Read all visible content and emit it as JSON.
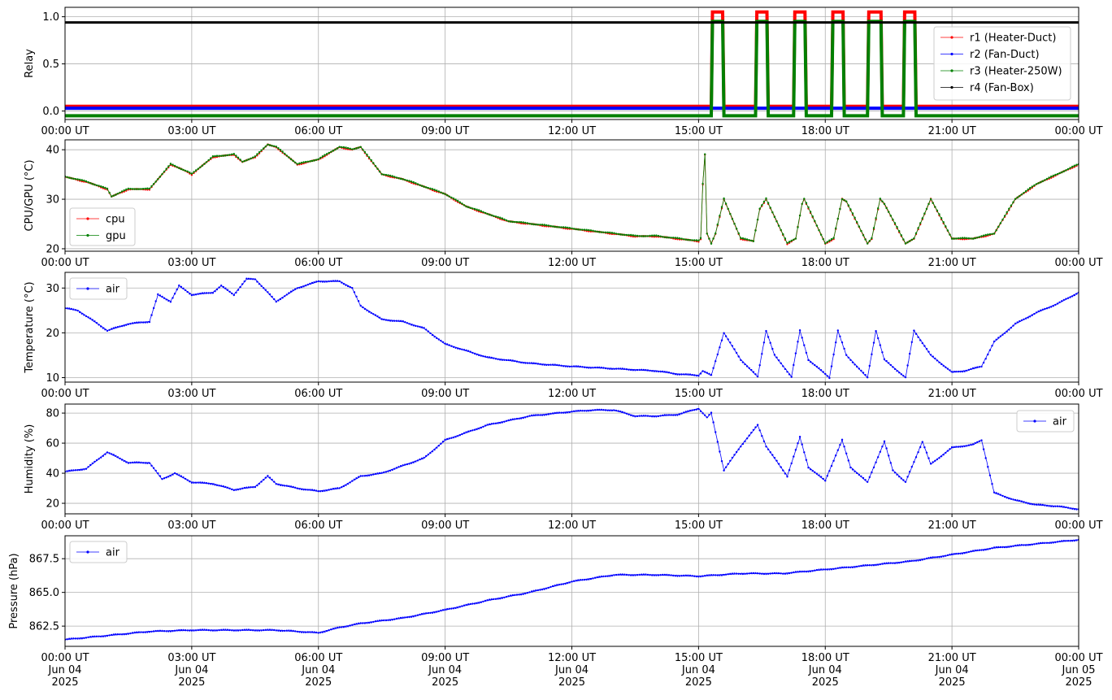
{
  "chart_data": [
    {
      "id": "relay",
      "type": "line",
      "ylabel": "Relay",
      "ylim": [
        -0.09,
        1.1
      ],
      "yticks": [
        0.0,
        0.5,
        1.0
      ],
      "ytick_labels": [
        "0.0",
        "0.5",
        "1.0"
      ],
      "grid": true,
      "legend_position": "center-right",
      "x_range_hours": [
        0,
        24
      ],
      "xtick_labels": [
        "00:00 UT",
        "03:00 UT",
        "06:00 UT",
        "09:00 UT",
        "12:00 UT",
        "15:00 UT",
        "18:00 UT",
        "21:00 UT",
        "00:00 UT"
      ],
      "series": [
        {
          "name": "r1 (Heater-Duct)",
          "color": "#ff0000",
          "off": 0.05,
          "on": 1.05,
          "on_intervals": [
            [
              15.3,
              15.6
            ],
            [
              16.35,
              16.65
            ],
            [
              17.25,
              17.55
            ],
            [
              18.15,
              18.45
            ],
            [
              19.0,
              19.35
            ],
            [
              19.85,
              20.15
            ]
          ]
        },
        {
          "name": "r2 (Fan-Duct)",
          "color": "#0000ff",
          "off": 0.03,
          "on": 0.03,
          "on_intervals": []
        },
        {
          "name": "r3 (Heater-250W)",
          "color": "#008000",
          "off": -0.05,
          "on": 0.95,
          "on_intervals": [
            [
              15.3,
              15.6
            ],
            [
              16.35,
              16.65
            ],
            [
              17.25,
              17.55
            ],
            [
              18.15,
              18.45
            ],
            [
              19.0,
              19.35
            ],
            [
              19.85,
              20.15
            ]
          ]
        },
        {
          "name": "r4 (Fan-Box)",
          "color": "#000000",
          "off": 0.94,
          "on": 0.94,
          "on_intervals": []
        }
      ]
    },
    {
      "id": "cpugpu",
      "type": "line",
      "ylabel": "CPU/GPU (°C)",
      "ylim": [
        19.5,
        42
      ],
      "yticks": [
        20,
        30,
        40
      ],
      "ytick_labels": [
        "20",
        "30",
        "40"
      ],
      "grid": true,
      "legend_position": "lower-left",
      "x_range_hours": [
        0,
        24
      ],
      "xtick_labels": [
        "00:00 UT",
        "03:00 UT",
        "06:00 UT",
        "09:00 UT",
        "12:00 UT",
        "15:00 UT",
        "18:00 UT",
        "21:00 UT",
        "00:00 UT"
      ],
      "series": [
        {
          "name": "cpu",
          "color": "#ff0000",
          "x": [
            0,
            0.5,
            1,
            1.1,
            1.5,
            2,
            2.5,
            2.9,
            3,
            3.5,
            4,
            4.2,
            4.5,
            4.8,
            5,
            5.5,
            6,
            6.5,
            6.8,
            7,
            7.5,
            8,
            8.5,
            9,
            9.5,
            10,
            10.5,
            11,
            11.5,
            12,
            12.5,
            13,
            13.5,
            14,
            14.5,
            15,
            15.05,
            15.1,
            15.15,
            15.2,
            15.3,
            15.4,
            15.6,
            15.9,
            16,
            16.3,
            16.45,
            16.6,
            17.1,
            17.3,
            17.45,
            17.5,
            18,
            18.2,
            18.4,
            18.5,
            19,
            19.1,
            19.3,
            19.4,
            19.9,
            20.1,
            20.5,
            21,
            21.5,
            22,
            22.5,
            23,
            23.5,
            24
          ],
          "y": [
            34.5,
            33.5,
            32,
            30.5,
            32,
            32,
            37,
            35.5,
            35,
            38.5,
            39,
            37.5,
            38.5,
            41,
            40.5,
            37,
            38,
            40.5,
            40,
            40.5,
            35,
            34,
            32.5,
            31,
            28.5,
            27,
            25.5,
            25,
            24.5,
            24,
            23.5,
            23,
            22.5,
            22.5,
            22,
            21.5,
            22,
            33,
            39,
            23,
            21,
            23,
            30,
            24,
            22,
            21.5,
            28,
            30,
            21,
            22,
            29,
            30,
            21,
            22,
            30,
            29.5,
            21,
            22,
            30,
            29,
            21,
            22,
            30,
            22,
            22,
            23,
            30,
            33,
            35,
            37
          ]
        },
        {
          "name": "gpu",
          "color": "#008000",
          "x": [
            0,
            0.5,
            1,
            1.1,
            1.5,
            2,
            2.5,
            2.9,
            3,
            3.5,
            4,
            4.2,
            4.5,
            4.8,
            5,
            5.5,
            6,
            6.5,
            6.8,
            7,
            7.5,
            8,
            8.5,
            9,
            9.5,
            10,
            10.5,
            11,
            11.5,
            12,
            12.5,
            13,
            13.5,
            14,
            14.5,
            15,
            15.05,
            15.1,
            15.15,
            15.2,
            15.3,
            15.4,
            15.6,
            15.9,
            16,
            16.3,
            16.45,
            16.6,
            17.1,
            17.3,
            17.45,
            17.5,
            18,
            18.2,
            18.4,
            18.5,
            19,
            19.1,
            19.3,
            19.4,
            19.9,
            20.1,
            20.5,
            21,
            21.5,
            22,
            22.5,
            23,
            23.5,
            24
          ],
          "y": [
            34.6,
            33.6,
            32.1,
            30.6,
            32.1,
            32.1,
            37.1,
            35.6,
            35.1,
            38.6,
            39.1,
            37.6,
            38.6,
            41.1,
            40.6,
            37.1,
            38.1,
            40.6,
            40.1,
            40.6,
            35.1,
            34.1,
            32.6,
            31.1,
            28.6,
            27.1,
            25.6,
            25.1,
            24.6,
            24.1,
            23.6,
            23.1,
            22.6,
            22.6,
            22.1,
            21.6,
            22.1,
            33.1,
            39.1,
            23.1,
            21.1,
            23.1,
            30.1,
            24.1,
            22.1,
            21.6,
            28.1,
            30.1,
            21.1,
            22.1,
            29.1,
            30.1,
            21.1,
            22.1,
            30.1,
            29.6,
            21.1,
            22.1,
            30.1,
            29.1,
            21.1,
            22.1,
            30.1,
            22.1,
            22.1,
            23.1,
            30.1,
            33.1,
            35.1,
            37.1
          ]
        }
      ]
    },
    {
      "id": "airtemp",
      "type": "line",
      "ylabel": "Temperature (°C)",
      "ylim": [
        9,
        33.5
      ],
      "yticks": [
        10,
        20,
        30
      ],
      "ytick_labels": [
        "10",
        "20",
        "30"
      ],
      "grid": true,
      "legend_position": "top-left",
      "x_range_hours": [
        0,
        24
      ],
      "xtick_labels": [
        "00:00 UT",
        "03:00 UT",
        "06:00 UT",
        "09:00 UT",
        "12:00 UT",
        "15:00 UT",
        "18:00 UT",
        "21:00 UT",
        "00:00 UT"
      ],
      "series": [
        {
          "name": "air",
          "color": "#0000ff",
          "x": [
            0,
            0.3,
            0.7,
            1,
            1.5,
            2,
            2.2,
            2.5,
            2.7,
            3,
            3.5,
            3.7,
            4,
            4.3,
            4.5,
            5,
            5.5,
            6,
            6.5,
            6.8,
            7,
            7.5,
            8,
            8.5,
            9,
            9.5,
            10,
            11,
            12,
            13,
            14,
            14.5,
            15,
            15.1,
            15.3,
            15.6,
            16,
            16.4,
            16.6,
            16.8,
            17.2,
            17.4,
            17.6,
            18.1,
            18.3,
            18.5,
            19,
            19.2,
            19.4,
            19.9,
            20.1,
            20.5,
            21,
            21.3,
            21.7,
            22,
            22.5,
            23,
            23.5,
            24
          ],
          "y": [
            25.5,
            25,
            22.5,
            20.5,
            22,
            22.5,
            28.5,
            27,
            30.5,
            28.5,
            29,
            30.5,
            28.5,
            32,
            32,
            27,
            30,
            31.5,
            31.5,
            30,
            26,
            23,
            22.5,
            21,
            17.5,
            16,
            14.5,
            13.2,
            12.5,
            12,
            11.5,
            10.8,
            10.5,
            11.5,
            10.5,
            20,
            14,
            10.2,
            20.5,
            15,
            10.2,
            20.5,
            14,
            10,
            20.5,
            15,
            10,
            20.5,
            14,
            10,
            20.5,
            15,
            11.2,
            11.5,
            12.5,
            18,
            22,
            24.5,
            26.5,
            29
          ]
        }
      ]
    },
    {
      "id": "humidity",
      "type": "line",
      "ylabel": "Humidity (%)",
      "ylim": [
        13,
        86
      ],
      "yticks": [
        20,
        40,
        60,
        80
      ],
      "ytick_labels": [
        "20",
        "40",
        "60",
        "80"
      ],
      "grid": true,
      "legend_position": "top-right",
      "x_range_hours": [
        0,
        24
      ],
      "xtick_labels": [
        "00:00 UT",
        "03:00 UT",
        "06:00 UT",
        "09:00 UT",
        "12:00 UT",
        "15:00 UT",
        "18:00 UT",
        "21:00 UT",
        "00:00 UT"
      ],
      "series": [
        {
          "name": "air",
          "color": "#0000ff",
          "x": [
            0,
            0.5,
            1,
            1.5,
            2,
            2.3,
            2.6,
            3,
            3.5,
            4,
            4.5,
            4.8,
            5,
            5.5,
            6,
            6.5,
            7,
            7.5,
            8,
            8.5,
            9,
            9.5,
            10,
            11,
            12,
            12.5,
            13,
            13.5,
            14,
            14.5,
            15,
            15.2,
            15.3,
            15.6,
            16,
            16.4,
            16.6,
            17.1,
            17.4,
            17.6,
            18,
            18.4,
            18.6,
            19,
            19.4,
            19.6,
            19.9,
            20.3,
            20.5,
            21,
            21.5,
            21.7,
            22,
            22.5,
            23,
            23.5,
            24
          ],
          "y": [
            41,
            43,
            54,
            47,
            47,
            36,
            40,
            34,
            33,
            29,
            31,
            38,
            33,
            30,
            28,
            30,
            38,
            40,
            45,
            50,
            62,
            67,
            72,
            78,
            81,
            82,
            82,
            78,
            78,
            79,
            83,
            77,
            80,
            42,
            58,
            72,
            58,
            38,
            64,
            44,
            35,
            62,
            44,
            34,
            61,
            42,
            34,
            61,
            46,
            57,
            59,
            62,
            27,
            22,
            19,
            18,
            16
          ]
        }
      ]
    },
    {
      "id": "pressure",
      "type": "line",
      "ylabel": "Pressure (hPa)",
      "ylim": [
        861.0,
        869.2
      ],
      "yticks": [
        862.5,
        865.0,
        867.5
      ],
      "ytick_labels": [
        "862.5",
        "865.0",
        "867.5"
      ],
      "grid": true,
      "legend_position": "top-left",
      "x_range_hours": [
        0,
        24
      ],
      "xtick_labels": [
        "00:00 UT\nJun 04\n2025",
        "03:00 UT\nJun 04\n2025",
        "06:00 UT\nJun 04\n2025",
        "09:00 UT\nJun 04\n2025",
        "12:00 UT\nJun 04\n2025",
        "15:00 UT\nJun 04\n2025",
        "18:00 UT\nJun 04\n2025",
        "21:00 UT\nJun 04\n2025",
        "00:00 UT\nJun 05\n2025"
      ],
      "series": [
        {
          "name": "air",
          "color": "#0000ff",
          "x": [
            0,
            1,
            2,
            3,
            4,
            5,
            6,
            6.5,
            7,
            8,
            9,
            10,
            11,
            12,
            13,
            14,
            15,
            16,
            17,
            18,
            19,
            20,
            21,
            22,
            23,
            24
          ],
          "y": [
            861.5,
            861.8,
            862.1,
            862.2,
            862.2,
            862.2,
            862.0,
            862.4,
            862.7,
            863.1,
            863.7,
            864.4,
            865.0,
            865.8,
            866.3,
            866.3,
            866.2,
            866.4,
            866.4,
            866.7,
            867.0,
            867.3,
            867.8,
            868.3,
            868.6,
            868.9
          ]
        }
      ]
    }
  ]
}
